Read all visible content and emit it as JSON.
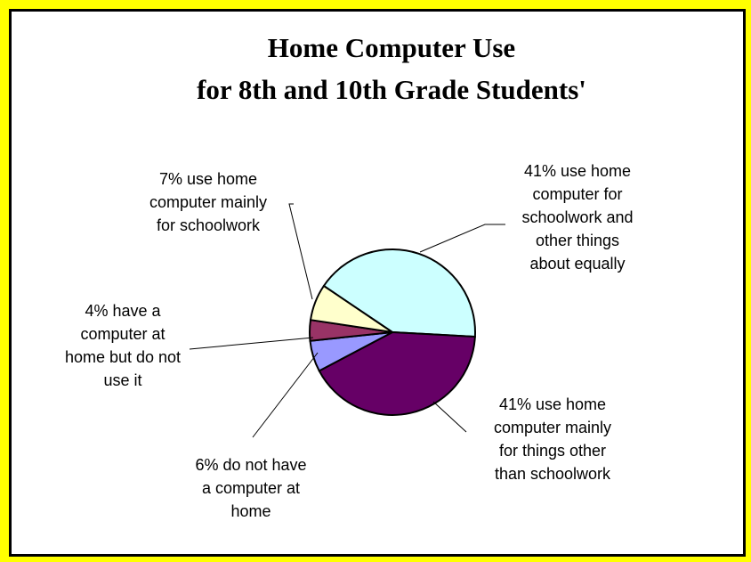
{
  "chart_data": {
    "type": "pie",
    "title_lines": [
      "Home Computer Use",
      "for 8th and 10th Grade Students'"
    ],
    "slices": [
      {
        "value": 41,
        "label_lines": [
          "41% use home",
          "computer for",
          "schoolwork and",
          "other things",
          "about equally"
        ],
        "color": "#ccffff"
      },
      {
        "value": 41,
        "label_lines": [
          "41% use home",
          "computer mainly",
          "for things other",
          "than schoolwork"
        ],
        "color": "#660066"
      },
      {
        "value": 6,
        "label_lines": [
          "6% do not have",
          "a computer at",
          "home"
        ],
        "color": "#9999ff"
      },
      {
        "value": 4,
        "label_lines": [
          "4% have a",
          "computer at",
          "home but do not",
          "use it"
        ],
        "color": "#993366"
      },
      {
        "value": 7,
        "label_lines": [
          "7% use home",
          "computer mainly",
          "for schoolwork"
        ],
        "color": "#ffffcc"
      }
    ],
    "legend": "none"
  },
  "colors": {
    "frame": "#ffff00",
    "panel_border": "#000000",
    "slice_outline": "#000000"
  }
}
